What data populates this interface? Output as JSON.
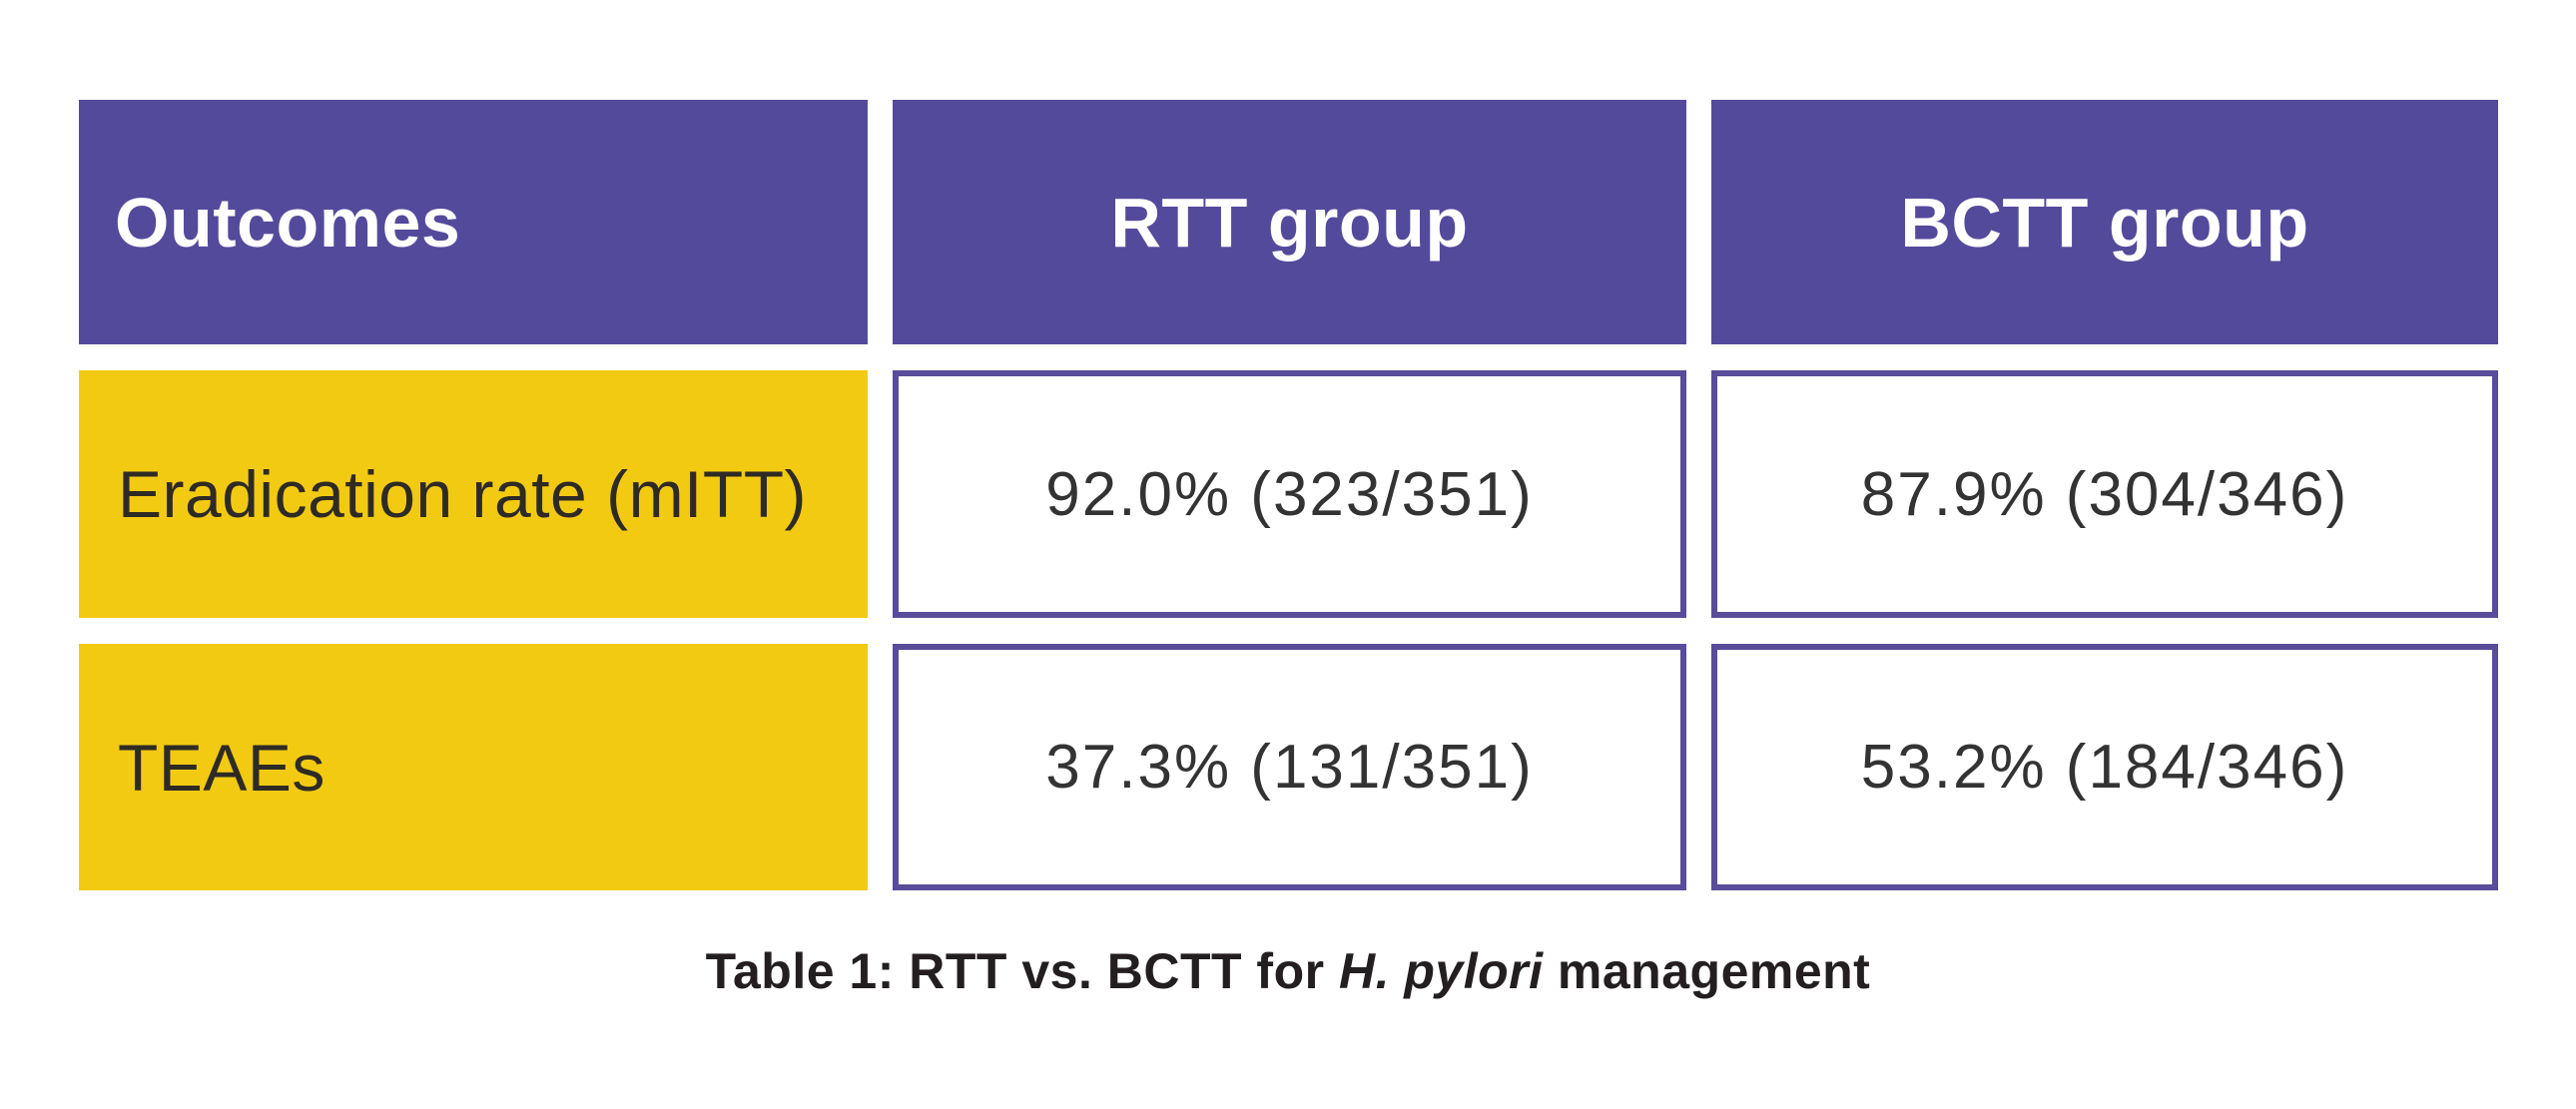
{
  "table": {
    "header": {
      "outcomes": "Outcomes",
      "rtt": "RTT group",
      "bctt": "BCTT group"
    },
    "rows": [
      {
        "label": "Eradication rate (mITT)",
        "rtt": "92.0% (323/351)",
        "bctt": "87.9% (304/346)"
      },
      {
        "label": "TEAEs",
        "rtt": "37.3% (131/351)",
        "bctt": "53.2% (184/346)"
      }
    ]
  },
  "caption": {
    "prefix": "Table 1: RTT vs. BCTT for ",
    "italic": "H. pylori",
    "suffix": " management"
  },
  "colors": {
    "header_bg": "#544a9b",
    "row_label_bg": "#f3ca12",
    "value_border": "#584c9b",
    "header_text": "#ffffff",
    "label_text": "#2e2b25",
    "value_text": "#333333",
    "caption_text": "#231f20",
    "page_bg": "#ffffff"
  },
  "chart_data": {
    "type": "table",
    "title": "Table 1: RTT vs. BCTT for H. pylori management",
    "columns": [
      "Outcomes",
      "RTT group",
      "BCTT group"
    ],
    "rows": [
      [
        "Eradication rate (mITT)",
        "92.0% (323/351)",
        "87.9% (304/346)"
      ],
      [
        "TEAEs",
        "37.3% (131/351)",
        "53.2% (184/346)"
      ]
    ],
    "numeric_values": {
      "eradication_rate_mitt_pct": {
        "RTT": 92.0,
        "BCTT": 87.9
      },
      "eradication_counts": {
        "RTT": "323/351",
        "BCTT": "304/346"
      },
      "teaes_pct": {
        "RTT": 37.3,
        "BCTT": 53.2
      },
      "teaes_counts": {
        "RTT": "131/351",
        "BCTT": "184/346"
      }
    },
    "legend_position": "none",
    "grid": false
  }
}
